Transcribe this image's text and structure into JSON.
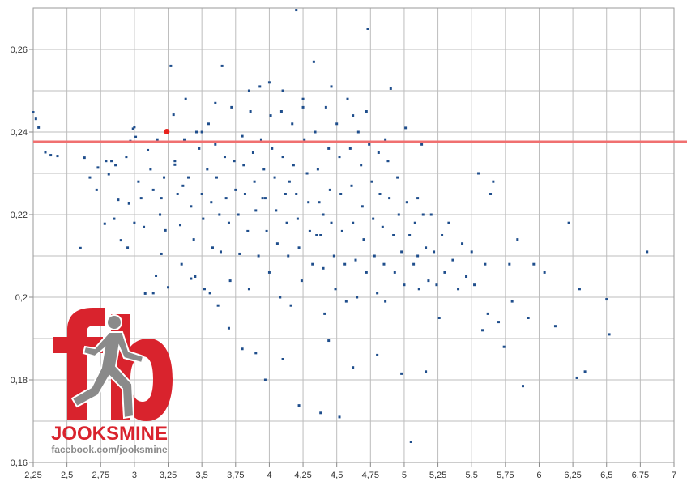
{
  "logo": {
    "word": "JOOKSMINE",
    "url": "facebook.com/jooksmine",
    "mark": "fb",
    "red": "#d9232d",
    "gray": "#8a8a8a",
    "icon": "runner-icon"
  },
  "chart_data": {
    "type": "scatter",
    "title": "",
    "xlabel": "",
    "ylabel": "",
    "xlim": [
      2.25,
      7
    ],
    "ylim": [
      0.16,
      0.27
    ],
    "xticks": [
      "2,25",
      "2,5",
      "2,75",
      "3",
      "3,25",
      "3,5",
      "3,75",
      "4",
      "4,25",
      "4,5",
      "4,75",
      "5",
      "5,25",
      "5,5",
      "5,75",
      "6",
      "6,25",
      "6,5",
      "6,75",
      "7"
    ],
    "yticks": [
      "0,16",
      "0,18",
      "0,2",
      "0,22",
      "0,24",
      "0,26"
    ],
    "grid": true,
    "point_color": "#1f4e8c",
    "highlight": {
      "x": 3.24,
      "y": 0.2401,
      "color": "#e8221c"
    },
    "reference_line": {
      "y": 0.2377,
      "color": "#f07070"
    },
    "points": [
      [
        2.25,
        0.2448
      ],
      [
        2.27,
        0.2432
      ],
      [
        2.29,
        0.2411
      ],
      [
        2.34,
        0.2351
      ],
      [
        2.38,
        0.2344
      ],
      [
        2.43,
        0.2342
      ],
      [
        2.6,
        0.2119
      ],
      [
        2.63,
        0.2338
      ],
      [
        2.67,
        0.229
      ],
      [
        2.72,
        0.226
      ],
      [
        2.73,
        0.2314
      ],
      [
        2.78,
        0.2178
      ],
      [
        2.79,
        0.233
      ],
      [
        2.81,
        0.2298
      ],
      [
        2.83,
        0.233
      ],
      [
        2.86,
        0.232
      ],
      [
        2.88,
        0.2236
      ],
      [
        2.9,
        0.2138
      ],
      [
        2.94,
        0.234
      ],
      [
        2.96,
        0.2227
      ],
      [
        2.97,
        0.2378
      ],
      [
        2.99,
        0.2408
      ],
      [
        3.0,
        0.2412
      ],
      [
        3.01,
        0.2388
      ],
      [
        3.03,
        0.228
      ],
      [
        3.05,
        0.224
      ],
      [
        3.07,
        0.217
      ],
      [
        3.08,
        0.2009
      ],
      [
        3.1,
        0.2356
      ],
      [
        3.12,
        0.231
      ],
      [
        3.14,
        0.226
      ],
      [
        3.16,
        0.2052
      ],
      [
        3.17,
        0.238
      ],
      [
        3.19,
        0.22
      ],
      [
        3.2,
        0.2105
      ],
      [
        3.22,
        0.229
      ],
      [
        3.23,
        0.2162
      ],
      [
        3.25,
        0.2024
      ],
      [
        3.27,
        0.256
      ],
      [
        3.29,
        0.2442
      ],
      [
        3.3,
        0.2321
      ],
      [
        3.32,
        0.225
      ],
      [
        3.34,
        0.2175
      ],
      [
        3.35,
        0.208
      ],
      [
        3.37,
        0.238
      ],
      [
        3.38,
        0.248
      ],
      [
        3.4,
        0.229
      ],
      [
        3.42,
        0.222
      ],
      [
        3.44,
        0.214
      ],
      [
        3.45,
        0.205
      ],
      [
        3.46,
        0.24
      ],
      [
        3.48,
        0.236
      ],
      [
        3.5,
        0.225
      ],
      [
        3.51,
        0.219
      ],
      [
        3.52,
        0.202
      ],
      [
        3.54,
        0.231
      ],
      [
        3.55,
        0.242
      ],
      [
        3.57,
        0.223
      ],
      [
        3.58,
        0.212
      ],
      [
        3.6,
        0.237
      ],
      [
        3.61,
        0.229
      ],
      [
        3.63,
        0.22
      ],
      [
        3.64,
        0.211
      ],
      [
        3.65,
        0.256
      ],
      [
        3.67,
        0.234
      ],
      [
        3.68,
        0.224
      ],
      [
        3.7,
        0.218
      ],
      [
        3.71,
        0.204
      ],
      [
        3.72,
        0.246
      ],
      [
        3.74,
        0.233
      ],
      [
        3.75,
        0.226
      ],
      [
        3.77,
        0.22
      ],
      [
        3.78,
        0.2105
      ],
      [
        3.8,
        0.239
      ],
      [
        3.81,
        0.232
      ],
      [
        3.82,
        0.225
      ],
      [
        3.84,
        0.216
      ],
      [
        3.85,
        0.202
      ],
      [
        3.86,
        0.245
      ],
      [
        3.88,
        0.235
      ],
      [
        3.89,
        0.228
      ],
      [
        3.9,
        0.221
      ],
      [
        3.92,
        0.21
      ],
      [
        3.93,
        0.251
      ],
      [
        3.94,
        0.238
      ],
      [
        3.96,
        0.231
      ],
      [
        3.97,
        0.224
      ],
      [
        3.98,
        0.216
      ],
      [
        4.0,
        0.206
      ],
      [
        4.01,
        0.244
      ],
      [
        4.02,
        0.236
      ],
      [
        4.04,
        0.229
      ],
      [
        4.05,
        0.221
      ],
      [
        4.06,
        0.213
      ],
      [
        4.08,
        0.2
      ],
      [
        4.09,
        0.245
      ],
      [
        4.1,
        0.234
      ],
      [
        4.12,
        0.225
      ],
      [
        4.13,
        0.218
      ],
      [
        4.14,
        0.21
      ],
      [
        4.16,
        0.198
      ],
      [
        4.17,
        0.242
      ],
      [
        4.18,
        0.232
      ],
      [
        4.2,
        0.225
      ],
      [
        4.21,
        0.219
      ],
      [
        4.22,
        0.212
      ],
      [
        4.24,
        0.204
      ],
      [
        4.25,
        0.248
      ],
      [
        4.26,
        0.238
      ],
      [
        4.28,
        0.23
      ],
      [
        4.29,
        0.223
      ],
      [
        4.3,
        0.216
      ],
      [
        4.32,
        0.208
      ],
      [
        4.33,
        0.257
      ],
      [
        4.34,
        0.24
      ],
      [
        4.36,
        0.231
      ],
      [
        4.37,
        0.223
      ],
      [
        4.38,
        0.215
      ],
      [
        4.4,
        0.207
      ],
      [
        4.41,
        0.196
      ],
      [
        4.42,
        0.246
      ],
      [
        4.44,
        0.236
      ],
      [
        4.45,
        0.226
      ],
      [
        4.46,
        0.218
      ],
      [
        4.48,
        0.21
      ],
      [
        4.49,
        0.202
      ],
      [
        4.5,
        0.242
      ],
      [
        4.52,
        0.234
      ],
      [
        4.53,
        0.225
      ],
      [
        4.54,
        0.216
      ],
      [
        4.56,
        0.208
      ],
      [
        4.57,
        0.199
      ],
      [
        4.58,
        0.248
      ],
      [
        4.6,
        0.236
      ],
      [
        4.61,
        0.227
      ],
      [
        4.62,
        0.218
      ],
      [
        4.64,
        0.209
      ],
      [
        4.65,
        0.2
      ],
      [
        4.66,
        0.24
      ],
      [
        4.68,
        0.232
      ],
      [
        4.69,
        0.222
      ],
      [
        4.7,
        0.214
      ],
      [
        4.72,
        0.206
      ],
      [
        4.73,
        0.265
      ],
      [
        4.74,
        0.237
      ],
      [
        4.76,
        0.228
      ],
      [
        4.77,
        0.219
      ],
      [
        4.78,
        0.21
      ],
      [
        4.8,
        0.201
      ],
      [
        4.81,
        0.235
      ],
      [
        4.82,
        0.225
      ],
      [
        4.84,
        0.217
      ],
      [
        4.85,
        0.208
      ],
      [
        4.86,
        0.199
      ],
      [
        4.88,
        0.233
      ],
      [
        4.89,
        0.224
      ],
      [
        4.9,
        0.2505
      ],
      [
        4.92,
        0.215
      ],
      [
        4.93,
        0.206
      ],
      [
        4.95,
        0.229
      ],
      [
        4.96,
        0.22
      ],
      [
        4.98,
        0.211
      ],
      [
        5.0,
        0.203
      ],
      [
        5.01,
        0.241
      ],
      [
        5.02,
        0.223
      ],
      [
        5.04,
        0.215
      ],
      [
        5.05,
        0.165
      ],
      [
        5.07,
        0.208
      ],
      [
        5.08,
        0.218
      ],
      [
        5.1,
        0.21
      ],
      [
        5.11,
        0.202
      ],
      [
        5.13,
        0.237
      ],
      [
        5.14,
        0.22
      ],
      [
        5.16,
        0.212
      ],
      [
        5.18,
        0.204
      ],
      [
        5.2,
        0.22
      ],
      [
        5.22,
        0.211
      ],
      [
        5.24,
        0.203
      ],
      [
        5.26,
        0.195
      ],
      [
        5.28,
        0.215
      ],
      [
        5.3,
        0.206
      ],
      [
        5.33,
        0.218
      ],
      [
        5.36,
        0.209
      ],
      [
        5.4,
        0.202
      ],
      [
        5.43,
        0.213
      ],
      [
        5.46,
        0.205
      ],
      [
        5.5,
        0.211
      ],
      [
        5.52,
        0.203
      ],
      [
        5.55,
        0.23
      ],
      [
        5.58,
        0.192
      ],
      [
        5.6,
        0.208
      ],
      [
        5.62,
        0.196
      ],
      [
        5.64,
        0.225
      ],
      [
        5.66,
        0.228
      ],
      [
        5.7,
        0.194
      ],
      [
        5.74,
        0.188
      ],
      [
        5.78,
        0.208
      ],
      [
        5.8,
        0.199
      ],
      [
        5.84,
        0.214
      ],
      [
        5.88,
        0.1785
      ],
      [
        5.92,
        0.195
      ],
      [
        5.96,
        0.208
      ],
      [
        6.04,
        0.206
      ],
      [
        6.12,
        0.193
      ],
      [
        6.22,
        0.218
      ],
      [
        6.28,
        0.1805
      ],
      [
        6.3,
        0.202
      ],
      [
        6.34,
        0.182
      ],
      [
        6.5,
        0.1995
      ],
      [
        6.52,
        0.191
      ],
      [
        6.8,
        0.211
      ],
      [
        4.2,
        0.2695
      ],
      [
        3.8,
        0.1875
      ],
      [
        3.97,
        0.18
      ],
      [
        4.1,
        0.185
      ],
      [
        4.22,
        0.1738
      ],
      [
        4.38,
        0.172
      ],
      [
        4.52,
        0.171
      ],
      [
        4.62,
        0.183
      ],
      [
        3.9,
        0.1865
      ],
      [
        4.8,
        0.186
      ],
      [
        4.98,
        0.1815
      ],
      [
        5.16,
        0.182
      ],
      [
        4.44,
        0.1895
      ],
      [
        3.62,
        0.198
      ],
      [
        3.7,
        0.1925
      ],
      [
        3.42,
        0.2045
      ],
      [
        3.56,
        0.201
      ],
      [
        3.0,
        0.218
      ],
      [
        2.85,
        0.219
      ],
      [
        2.95,
        0.212
      ],
      [
        3.14,
        0.201
      ],
      [
        3.2,
        0.224
      ],
      [
        3.36,
        0.227
      ],
      [
        3.5,
        0.24
      ],
      [
        3.3,
        0.233
      ],
      [
        3.6,
        0.247
      ],
      [
        3.85,
        0.25
      ],
      [
        4.0,
        0.252
      ],
      [
        4.1,
        0.25
      ],
      [
        4.25,
        0.246
      ],
      [
        4.46,
        0.251
      ],
      [
        4.62,
        0.244
      ],
      [
        4.72,
        0.245
      ],
      [
        4.86,
        0.238
      ],
      [
        5.1,
        0.224
      ],
      [
        4.4,
        0.22
      ],
      [
        4.35,
        0.215
      ],
      [
        4.15,
        0.228
      ],
      [
        3.95,
        0.224
      ]
    ]
  }
}
